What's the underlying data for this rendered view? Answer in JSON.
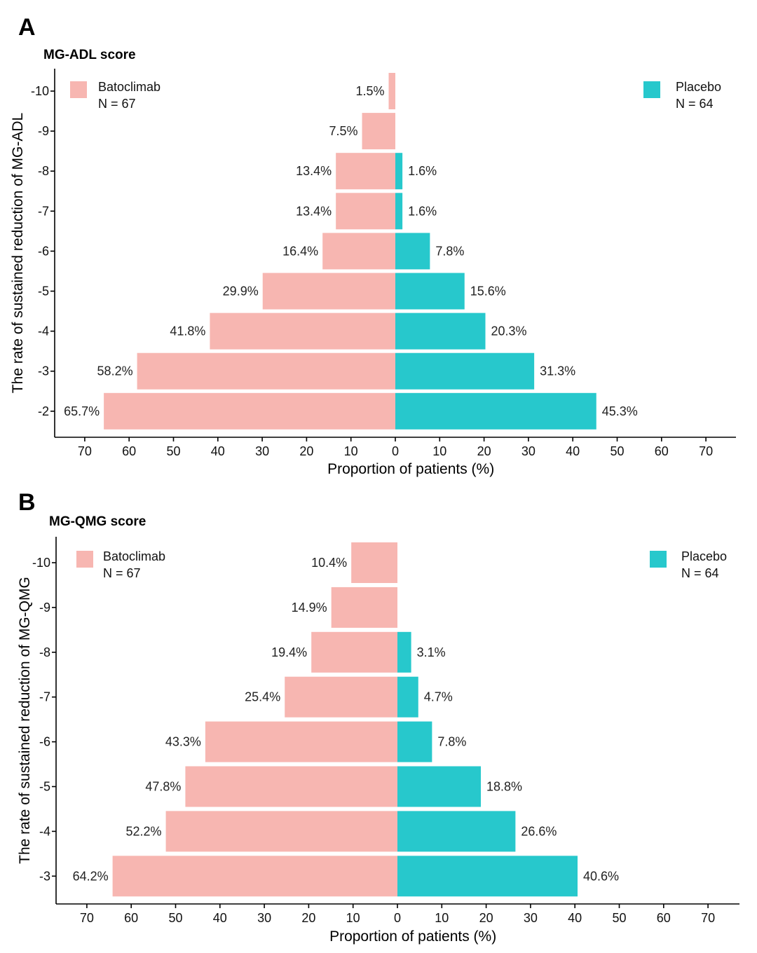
{
  "colors": {
    "batoclimab": "#f7b6b1",
    "placebo": "#27c8cc"
  },
  "chart_data": [
    {
      "type": "bar",
      "orientation": "horizontal-back-to-back",
      "panel": "A",
      "title": "MG-ADL score",
      "ylabel": "The rate of sustained reduction of MG-ADL",
      "xlabel": "Proportion of patients (%)",
      "xlim": [
        -75,
        77
      ],
      "xticks": [
        -70,
        -60,
        -50,
        -40,
        -30,
        -20,
        -10,
        0,
        10,
        20,
        30,
        40,
        50,
        60,
        70
      ],
      "xtick_labels": [
        "70",
        "60",
        "50",
        "40",
        "30",
        "20",
        "10",
        "0",
        "10",
        "20",
        "30",
        "40",
        "50",
        "60",
        "70"
      ],
      "categories": [
        "-10",
        "-9",
        "-8",
        "-7",
        "-6",
        "-5",
        "-4",
        "-3",
        "-2"
      ],
      "series": [
        {
          "name": "Batoclimab",
          "n_label": "N = 67",
          "side": "left",
          "values": [
            1.5,
            7.5,
            13.4,
            13.4,
            16.4,
            29.9,
            41.8,
            58.2,
            65.7
          ],
          "labels": [
            "1.5%",
            "7.5%",
            "13.4%",
            "13.4%",
            "16.4%",
            "29.9%",
            "41.8%",
            "58.2%",
            "65.7%"
          ]
        },
        {
          "name": "Placebo",
          "n_label": "N = 64",
          "side": "right",
          "values": [
            0,
            0,
            1.6,
            1.6,
            7.8,
            15.6,
            20.3,
            31.3,
            45.3
          ],
          "labels": [
            "",
            "",
            "1.6%",
            "1.6%",
            "7.8%",
            "15.6%",
            "20.3%",
            "31.3%",
            "45.3%"
          ]
        }
      ]
    },
    {
      "type": "bar",
      "orientation": "horizontal-back-to-back",
      "panel": "B",
      "title": "MG-QMG score",
      "ylabel": "The rate of sustained reduction of MG-QMG",
      "xlabel": "Proportion of patients (%)",
      "xlim": [
        -75,
        77
      ],
      "xticks": [
        -70,
        -60,
        -50,
        -40,
        -30,
        -20,
        -10,
        0,
        10,
        20,
        30,
        40,
        50,
        60,
        70
      ],
      "xtick_labels": [
        "70",
        "60",
        "50",
        "40",
        "30",
        "20",
        "10",
        "0",
        "10",
        "20",
        "30",
        "40",
        "50",
        "60",
        "70"
      ],
      "categories": [
        "-10",
        "-9",
        "-8",
        "-7",
        "-6",
        "-5",
        "-4",
        "-3"
      ],
      "series": [
        {
          "name": "Batoclimab",
          "n_label": "N = 67",
          "side": "left",
          "values": [
            10.4,
            14.9,
            19.4,
            25.4,
            43.3,
            47.8,
            52.2,
            64.2
          ],
          "labels": [
            "10.4%",
            "14.9%",
            "19.4%",
            "25.4%",
            "43.3%",
            "47.8%",
            "52.2%",
            "64.2%"
          ]
        },
        {
          "name": "Placebo",
          "n_label": "N = 64",
          "side": "right",
          "values": [
            0,
            0,
            3.1,
            4.7,
            7.8,
            18.8,
            26.6,
            40.6
          ],
          "labels": [
            "",
            "",
            "3.1%",
            "4.7%",
            "7.8%",
            "18.8%",
            "26.6%",
            "40.6%"
          ]
        }
      ]
    }
  ]
}
